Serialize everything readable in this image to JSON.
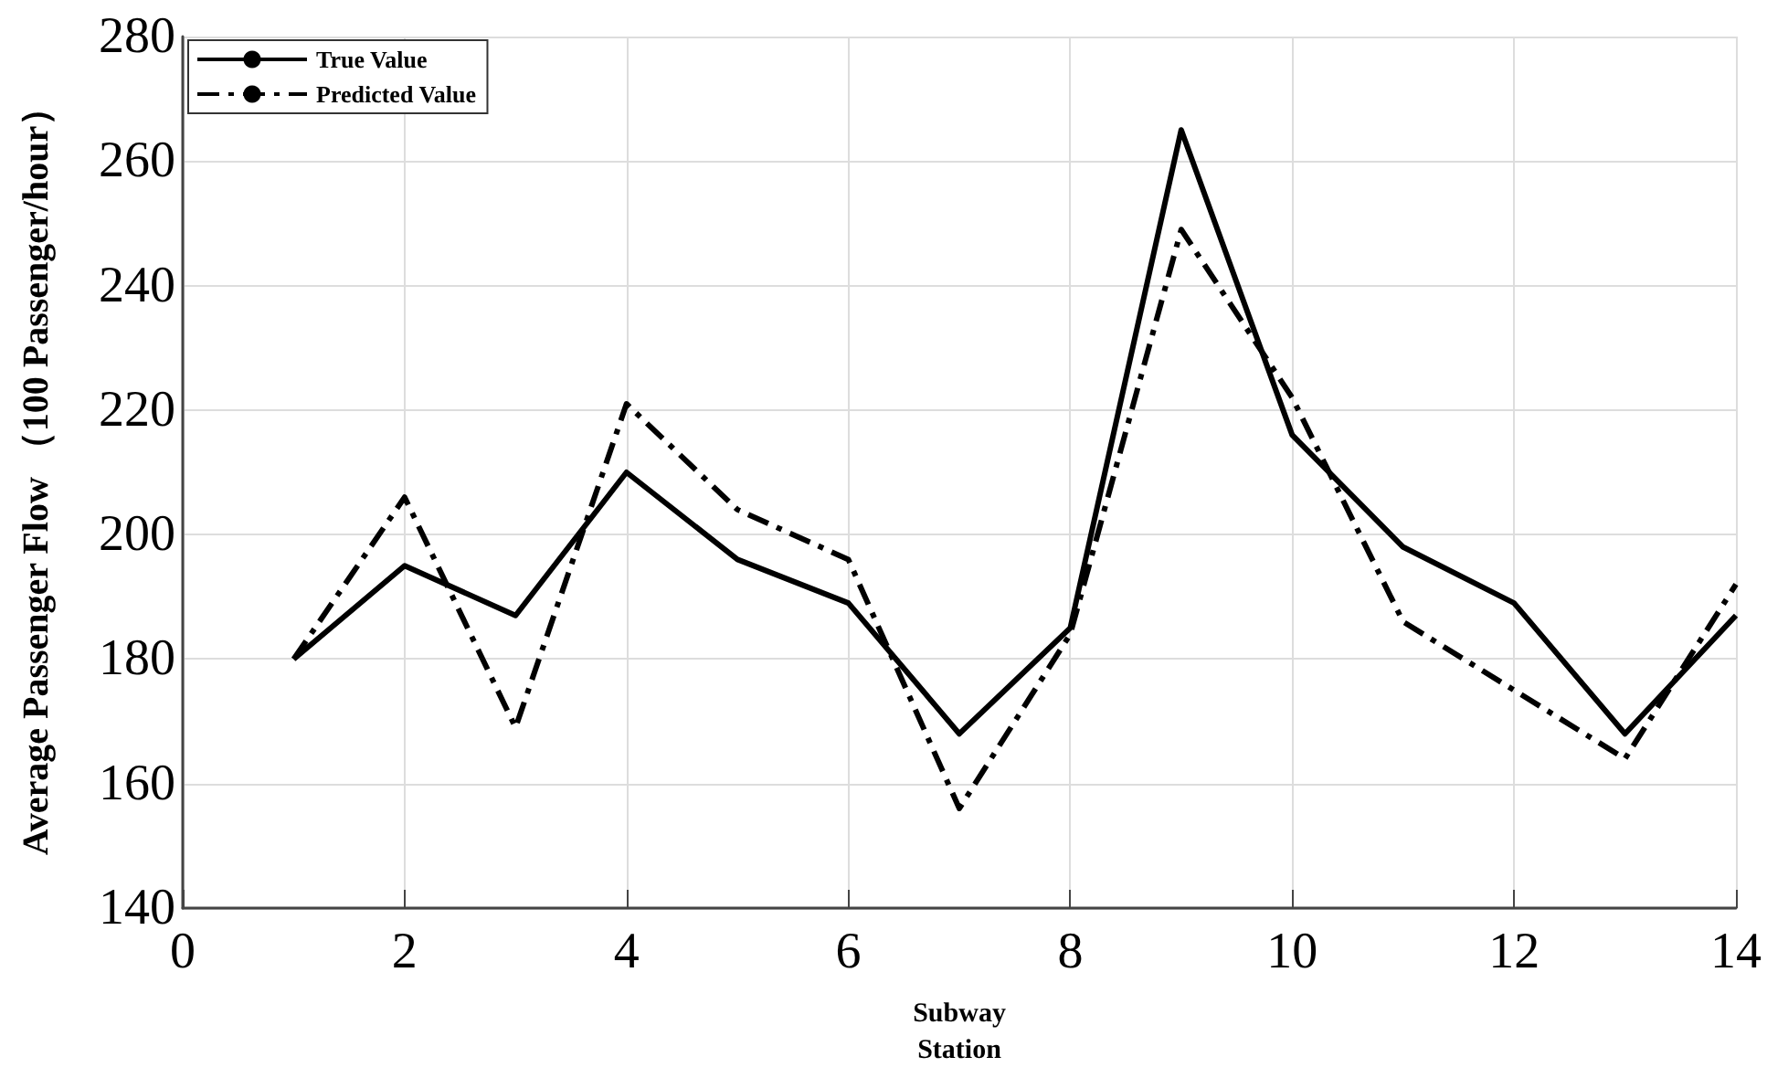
{
  "chart_data": {
    "type": "line",
    "xlabel": "Subway Station",
    "ylabel": "Average Passenger Flow （100 Passenger/hour）",
    "x": [
      1,
      2,
      3,
      4,
      5,
      6,
      7,
      8,
      9,
      10,
      11,
      12,
      13,
      14
    ],
    "series": [
      {
        "name": "True Value",
        "color": "#000000",
        "line_style": "solid",
        "values": [
          180,
          195,
          187,
          210,
          196,
          189,
          168,
          185,
          265,
          216,
          198,
          189,
          168,
          187
        ]
      },
      {
        "name": "Predicted Value",
        "color": "#000000",
        "line_style": "dashed",
        "values": [
          180,
          206,
          169,
          221,
          204,
          196,
          156,
          184,
          249,
          222,
          186,
          175,
          164,
          192
        ]
      }
    ],
    "xlim": [
      0,
      14
    ],
    "xticks": [
      0,
      2,
      4,
      6,
      8,
      10,
      12,
      14
    ],
    "ylim": [
      140,
      280
    ],
    "yticks": [
      140,
      160,
      180,
      200,
      220,
      240,
      260,
      280
    ],
    "grid": true,
    "legend": "top left",
    "marker": "none"
  }
}
